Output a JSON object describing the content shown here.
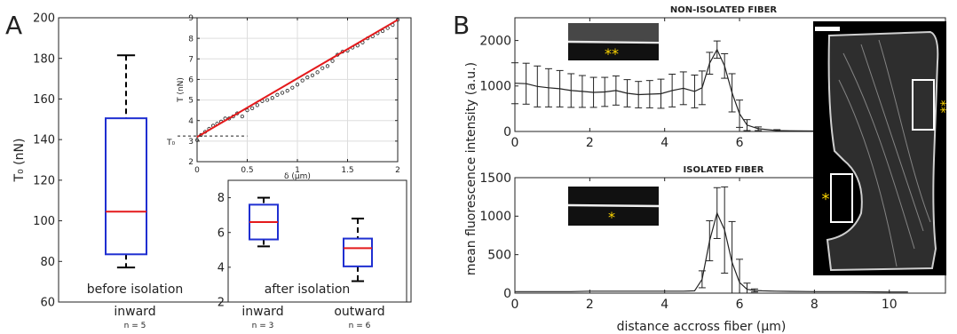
{
  "panels": {
    "a": "A",
    "b": "B"
  },
  "chart_data": [
    {
      "id": "A-main",
      "type": "box",
      "ylabel": "T₀ (nN)",
      "ylim": [
        60,
        200
      ],
      "yticks": [
        60,
        80,
        100,
        120,
        140,
        160,
        180,
        200
      ],
      "categories": [
        {
          "label": "inward",
          "n": "n = 5"
        }
      ],
      "caption": "before isolation",
      "boxes": [
        {
          "whisker_low": 77,
          "q1": 83.5,
          "median": 104.5,
          "q3": 150.5,
          "whisker_high": 181.5
        }
      ],
      "colors": {
        "box": "#1f2fd1",
        "median": "#e41a1c",
        "whisker": "#000000"
      }
    },
    {
      "id": "A-inset-fit",
      "type": "scatter",
      "xlabel": "δ  (μm)",
      "ylabel": "T (nN)",
      "xlim": [
        0,
        2
      ],
      "ylim": [
        2,
        9
      ],
      "xticks": [
        "0",
        "0.5",
        "1",
        "1.5",
        "2"
      ],
      "yticks": [
        2,
        3,
        4,
        5,
        6,
        7,
        8,
        9
      ],
      "annotation": "T₀",
      "t0_value": 3.25,
      "fit": {
        "x": [
          0,
          2
        ],
        "y": [
          3.2,
          8.9
        ],
        "color": "#e41a1c"
      },
      "x": [
        0.0,
        0.04,
        0.08,
        0.12,
        0.16,
        0.2,
        0.24,
        0.28,
        0.32,
        0.36,
        0.4,
        0.45,
        0.5,
        0.55,
        0.6,
        0.65,
        0.7,
        0.75,
        0.8,
        0.85,
        0.9,
        0.95,
        1.0,
        1.05,
        1.1,
        1.15,
        1.2,
        1.25,
        1.3,
        1.35,
        1.4,
        1.45,
        1.5,
        1.55,
        1.6,
        1.65,
        1.7,
        1.75,
        1.8,
        1.85,
        1.9,
        1.95,
        2.0
      ],
      "y": [
        3.05,
        3.3,
        3.45,
        3.6,
        3.75,
        3.85,
        3.95,
        4.1,
        4.1,
        4.2,
        4.35,
        4.2,
        4.5,
        4.6,
        4.75,
        4.95,
        5.0,
        5.1,
        5.25,
        5.35,
        5.45,
        5.6,
        5.75,
        5.95,
        6.1,
        6.2,
        6.35,
        6.55,
        6.65,
        6.9,
        7.2,
        7.35,
        7.4,
        7.55,
        7.65,
        7.8,
        8.0,
        8.1,
        8.25,
        8.35,
        8.5,
        8.65,
        8.9
      ]
    },
    {
      "id": "A-inset-box",
      "type": "box",
      "ylim": [
        2,
        9
      ],
      "yticks": [
        2,
        4,
        6,
        8
      ],
      "caption": "after isolation",
      "categories": [
        {
          "label": "inward",
          "n": "n = 3"
        },
        {
          "label": "outward",
          "n": "n = 6"
        }
      ],
      "boxes": [
        {
          "whisker_low": 5.2,
          "q1": 5.6,
          "median": 6.6,
          "q3": 7.6,
          "whisker_high": 8.0
        },
        {
          "whisker_low": 3.2,
          "q1": 4.05,
          "median": 5.1,
          "q3": 5.65,
          "whisker_high": 6.8
        }
      ],
      "colors": {
        "box": "#1f2fd1",
        "median": "#e41a1c",
        "whisker": "#000000"
      }
    },
    {
      "id": "B-top",
      "type": "line",
      "title": "NON-ISOLATED FIBER",
      "xlim": [
        0,
        11.5
      ],
      "ylim": [
        0,
        2500
      ],
      "xticks": [
        0,
        2,
        4,
        6
      ],
      "yticks": [
        0,
        1000,
        2000
      ],
      "ytick_labels": [
        "0",
        "1000",
        "2000"
      ],
      "inset_marker": "**",
      "x": [
        0.0,
        0.3,
        0.6,
        0.9,
        1.2,
        1.5,
        1.8,
        2.1,
        2.4,
        2.7,
        3.0,
        3.3,
        3.6,
        3.9,
        4.2,
        4.5,
        4.8,
        5.0,
        5.2,
        5.4,
        5.6,
        5.8,
        6.0,
        6.2,
        6.5,
        7.0,
        8.0,
        9.0,
        10.0,
        10.5
      ],
      "y": [
        1060,
        1050,
        990,
        960,
        940,
        900,
        880,
        860,
        870,
        900,
        840,
        810,
        820,
        830,
        900,
        950,
        880,
        960,
        1500,
        1800,
        1440,
        850,
        390,
        140,
        60,
        20,
        10,
        5,
        5,
        5
      ],
      "err": [
        450,
        450,
        450,
        420,
        400,
        370,
        350,
        330,
        320,
        320,
        300,
        290,
        300,
        320,
        360,
        360,
        360,
        370,
        240,
        190,
        270,
        420,
        300,
        120,
        40,
        20,
        10,
        5,
        5,
        5
      ]
    },
    {
      "id": "B-bottom",
      "type": "line",
      "title": "ISOLATED FIBER",
      "xlabel": "distance accross fiber (µm)",
      "ylabel": "mean fluorescence intensity (a.u.)",
      "xlim": [
        0,
        11.5
      ],
      "ylim": [
        0,
        1500
      ],
      "xticks": [
        0,
        2,
        4,
        6,
        8,
        10
      ],
      "yticks": [
        0,
        500,
        1000,
        1500
      ],
      "ytick_labels": [
        "0",
        "500",
        "1000",
        "1500"
      ],
      "inset_marker": "*",
      "x": [
        0.0,
        0.5,
        1.0,
        1.5,
        2.0,
        2.5,
        3.0,
        3.5,
        4.0,
        4.5,
        4.8,
        5.0,
        5.2,
        5.4,
        5.6,
        5.8,
        6.0,
        6.2,
        6.4,
        6.6,
        7.0,
        8.0,
        9.0,
        10.0,
        10.5
      ],
      "y": [
        20,
        20,
        20,
        20,
        25,
        25,
        25,
        25,
        25,
        25,
        30,
        180,
        680,
        1040,
        820,
        400,
        140,
        50,
        35,
        30,
        25,
        20,
        20,
        15,
        15
      ],
      "err": [
        8,
        8,
        8,
        8,
        8,
        8,
        8,
        8,
        8,
        8,
        10,
        110,
        260,
        330,
        560,
        530,
        300,
        80,
        20,
        10,
        8,
        6,
        6,
        6,
        6
      ]
    }
  ],
  "image_markers": {
    "top": "**",
    "bottom": "*"
  }
}
